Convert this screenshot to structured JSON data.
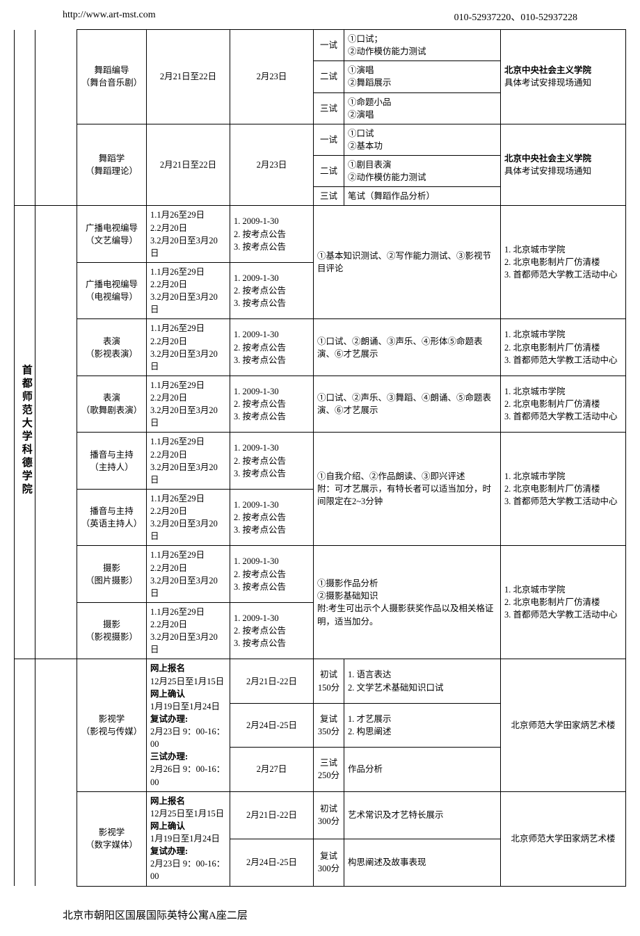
{
  "header": {
    "url": "http://www.art-mst.com",
    "phones": "010-52937220、010-52937228"
  },
  "footer": {
    "address": "北京市朝阳区国展国际英特公寓A座二层"
  },
  "colors": {
    "text": "#000000",
    "bg": "#ffffff",
    "border": "#000000"
  },
  "venues": {
    "socialism": "北京中央社会主义学院",
    "socialism_note": "具体考试安排现场通知",
    "kede_combo": "1. 北京城市学院\n2. 北京电影制片厂仿清楼\n3. 首都师范大学教工活动中心",
    "bnu_tian": "北京师范大学田家炳艺术楼"
  },
  "dance_rows": [
    {
      "major": "舞蹈编导\n（舞台音乐剧）",
      "date": "2月21日至22日",
      "announce": "2月23日",
      "stages": [
        {
          "name": "一试",
          "content": "①口试；\n②动作模仿能力测试"
        },
        {
          "name": "二试",
          "content": "①演唱\n②舞蹈展示"
        },
        {
          "name": "三试",
          "content": "①命题小品\n②演唱"
        }
      ]
    },
    {
      "major": "舞蹈学\n（舞蹈理论）",
      "date": "2月21日至22日",
      "announce": "2月23日",
      "stages": [
        {
          "name": "一试",
          "content": "①口试\n②基本功"
        },
        {
          "name": "二试",
          "content": "①剧目表演\n②动作模仿能力测试"
        },
        {
          "name": "三试",
          "content": "笔试（舞蹈作品分析）"
        }
      ]
    }
  ],
  "kede": {
    "school_name": "首都师范大学科德学院",
    "date_block": "1.1月26至29日\n2.2月20日\n3.2月20日至3月20日",
    "announce_block": "1. 2009-1-30\n2. 按考点公告\n3. 按考点公告",
    "rows": [
      {
        "major": "广播电视编导\n（文艺编导）",
        "content_shared": "①基本知识测试、②写作能力测试、③影视节目评论",
        "venue_shared": true
      },
      {
        "major": "广播电视编导\n（电视编导）"
      },
      {
        "major": "表演\n（影视表演）",
        "content": "①口试、②朗诵、③声乐、④形体⑤命题表演、⑥才艺展示",
        "venue_own": true
      },
      {
        "major": "表演\n（歌舞剧表演）",
        "content": "①口试、②声乐、③舞蹈、④朗诵、⑤命题表演、⑥才艺展示",
        "venue_own": true
      },
      {
        "major": "播音与主持\n（主持人）",
        "content_shared": "①自我介绍、②作品朗读、③即兴评述\n附：可才艺展示，有特长者可以适当加分，时间限定在2~3分钟",
        "venue_shared": true
      },
      {
        "major": "播音与主持\n（英语主持人）"
      },
      {
        "major": "摄影\n（图片摄影）",
        "content_shared": "①摄影作品分析\n②摄影基础知识\n附:考生可出示个人摄影获奖作品以及相关格证明，适当加分。",
        "venue_shared": true
      },
      {
        "major": "摄影\n（影视摄影）"
      }
    ]
  },
  "film": [
    {
      "major": "影视学\n（影视与传媒）",
      "reg_block": [
        {
          "label": "网上报名",
          "val": "12月25日至1月15日"
        },
        {
          "label": "网上确认",
          "val": "1月19日至1月24日"
        },
        {
          "label": "复试办理:",
          "val": "2月23日 9：00-16：00"
        },
        {
          "label": "三试办理:",
          "val": "2月26日 9：00-16：00"
        }
      ],
      "stages": [
        {
          "date": "2月21日-22日",
          "name": "初试\n150分",
          "content": "1. 语言表达\n2. 文学艺术基础知识口试"
        },
        {
          "date": "2月24日-25日",
          "name": "复试\n350分",
          "content": "1. 才艺展示\n2. 构思阐述"
        },
        {
          "date": "2月27日",
          "name": "三试\n250分",
          "content": "作品分析"
        }
      ]
    },
    {
      "major": "影视学\n（数字媒体）",
      "reg_block": [
        {
          "label": "网上报名",
          "val": "12月25日至1月15日"
        },
        {
          "label": "网上确认",
          "val": "1月19日至1月24日"
        },
        {
          "label": "复试办理:",
          "val": "2月23日 9：00-16：00"
        }
      ],
      "stages": [
        {
          "date": "2月21日-22日",
          "name": "初试\n300分",
          "content": "艺术常识及才艺特长展示"
        },
        {
          "date": "2月24日-25日",
          "name": "复试\n300分",
          "content": "构思阐述及故事表现"
        }
      ]
    }
  ]
}
